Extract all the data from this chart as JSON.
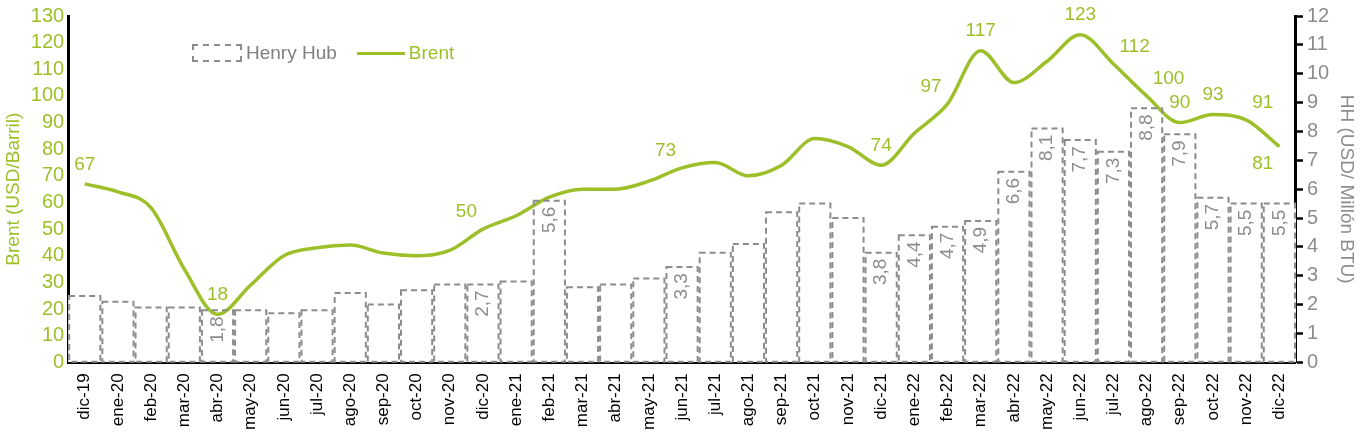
{
  "chart_data": {
    "type": "bar",
    "categories": [
      "dic-19",
      "ene-20",
      "feb-20",
      "mar-20",
      "abr-20",
      "may-20",
      "jun-20",
      "jul-20",
      "ago-20",
      "sep-20",
      "oct-20",
      "nov-20",
      "dic-20",
      "ene-21",
      "feb-21",
      "mar-21",
      "abr-21",
      "may-21",
      "jun-21",
      "jul-21",
      "ago-21",
      "sep-21",
      "oct-21",
      "nov-21",
      "dic-21",
      "ene-22",
      "feb-22",
      "mar-22",
      "abr-22",
      "may-22",
      "jun-22",
      "jul-22",
      "ago-22",
      "sep-22",
      "oct-22",
      "nov-22",
      "dic-22"
    ],
    "series": [
      {
        "name": "Henry Hub",
        "axis": "y2",
        "color": "#8c8c8c",
        "line_style": "dashed",
        "values": [
          2.3,
          2.1,
          1.9,
          1.9,
          1.8,
          1.8,
          1.7,
          1.8,
          2.4,
          2.0,
          2.5,
          2.7,
          2.7,
          2.8,
          5.6,
          2.6,
          2.7,
          2.9,
          3.3,
          3.8,
          4.1,
          5.2,
          5.5,
          5.0,
          3.8,
          4.4,
          4.7,
          4.9,
          6.6,
          8.1,
          7.7,
          7.3,
          8.8,
          7.9,
          5.7,
          5.5,
          5.5
        ],
        "value_labels": [
          null,
          null,
          null,
          null,
          "1,8",
          null,
          null,
          null,
          null,
          null,
          null,
          null,
          "2,7",
          null,
          "5,6",
          null,
          null,
          null,
          "3,3",
          null,
          null,
          null,
          null,
          null,
          "3,8",
          "4,4",
          "4,7",
          "4,9",
          "6,6",
          "8,1",
          "7,7",
          "7,3",
          "8,8",
          "7,9",
          "5,7",
          "5,5",
          "5,5"
        ]
      },
      {
        "name": "Brent",
        "type": "line",
        "axis": "y",
        "color": "#9dc02a",
        "line_style": "solid",
        "values": [
          67,
          64,
          58,
          35,
          18,
          29,
          40,
          43,
          44,
          41,
          40,
          42,
          50,
          55,
          62,
          65,
          65,
          68,
          73,
          75,
          70,
          74,
          84,
          81,
          74,
          86,
          97,
          117,
          105,
          113,
          123,
          112,
          100,
          90,
          93,
          91,
          81
        ],
        "value_labels": [
          "67",
          null,
          null,
          null,
          "18",
          null,
          null,
          null,
          null,
          null,
          null,
          null,
          "50",
          null,
          null,
          null,
          null,
          null,
          "73",
          null,
          null,
          null,
          null,
          null,
          "74",
          null,
          "97",
          "117",
          null,
          null,
          "123",
          "112",
          "100",
          "90",
          "93",
          "91",
          "81"
        ]
      }
    ],
    "ylabel": "Brent (USD/Barril)",
    "y2label": "HH (USD/ Millón BTU)",
    "ylim": [
      0,
      130
    ],
    "yticks": [
      0,
      10,
      20,
      30,
      40,
      50,
      60,
      70,
      80,
      90,
      100,
      110,
      120,
      130
    ],
    "y2lim": [
      0,
      12
    ],
    "y2ticks": [
      0,
      1,
      2,
      3,
      4,
      5,
      6,
      7,
      8,
      9,
      10,
      11,
      12
    ],
    "grid": false,
    "legend": "top left",
    "marker": "none"
  }
}
